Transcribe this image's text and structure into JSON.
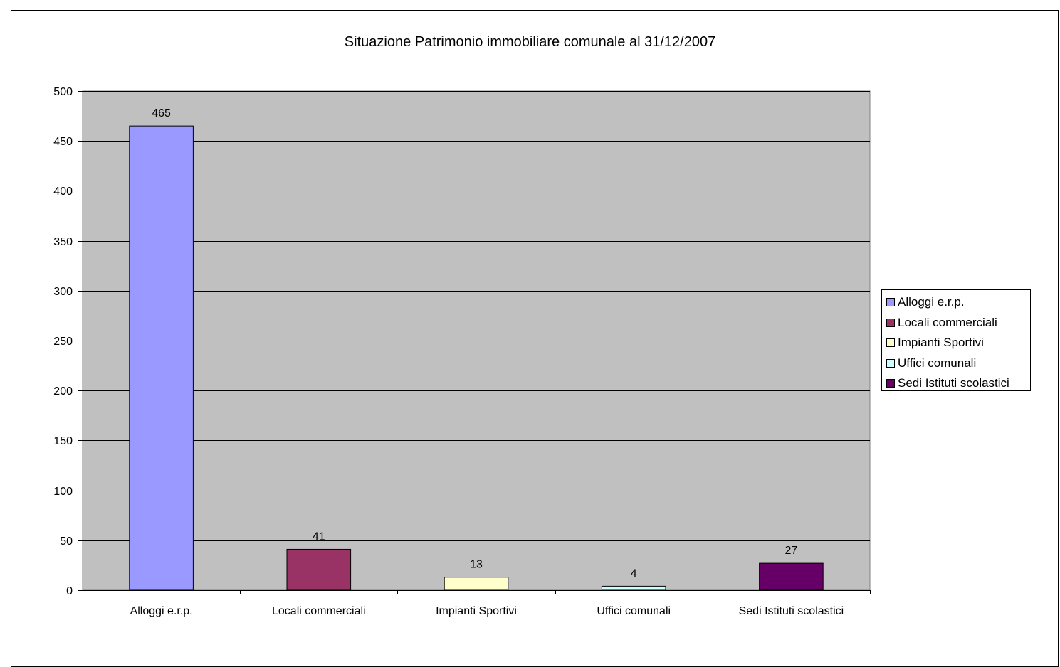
{
  "chart_data": {
    "type": "bar",
    "title": "Situazione Patrimonio immobiliare comunale al 31/12/2007",
    "categories": [
      "Alloggi e.r.p.",
      "Locali commerciali",
      "Impianti Sportivi",
      "Uffici comunali",
      "Sedi Istituti scolastici"
    ],
    "values": [
      465,
      41,
      13,
      4,
      27
    ],
    "colors": [
      "#9999ff",
      "#993366",
      "#ffffcc",
      "#ccffff",
      "#660066"
    ],
    "ylim": [
      0,
      500
    ],
    "yticks": [
      0,
      50,
      100,
      150,
      200,
      250,
      300,
      350,
      400,
      450,
      500
    ],
    "grid": true,
    "plot_background": "#c0c0c0",
    "legend_position": "right",
    "legend": [
      "Alloggi e.r.p.",
      "Locali commerciali",
      "Impianti Sportivi",
      "Uffici comunali",
      "Sedi Istituti scolastici"
    ]
  }
}
